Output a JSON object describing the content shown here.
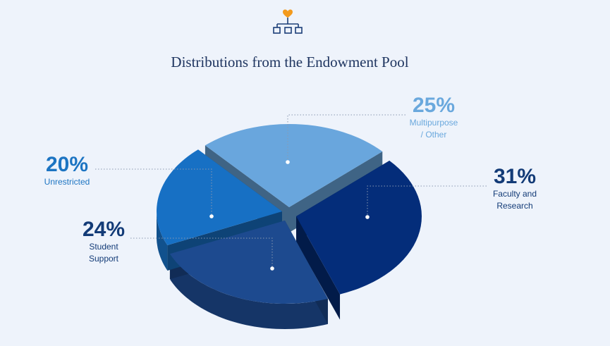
{
  "icon": "org-chart-heart-icon",
  "chart_data": {
    "type": "pie",
    "title": "Distributions from the Endowment Pool",
    "slices": [
      {
        "key": "multipurpose",
        "value": 25,
        "percent_label": "25%",
        "label_lines": [
          "Multipurpose",
          "/ Other"
        ],
        "color": "#69a6dd"
      },
      {
        "key": "faculty",
        "value": 31,
        "percent_label": "31%",
        "label_lines": [
          "Faculty and",
          "Research"
        ],
        "color": "#042d7a"
      },
      {
        "key": "student",
        "value": 24,
        "percent_label": "24%",
        "label_lines": [
          "Student",
          "Support"
        ],
        "color": "#1d4a8f"
      },
      {
        "key": "unrestricted",
        "value": 20,
        "percent_label": "20%",
        "label_lines": [
          "Unrestricted"
        ],
        "color": "#1770c4"
      }
    ],
    "label_colors": {
      "light": "#6aa8dd",
      "dark": "#133b77",
      "mid": "#1c74c2"
    },
    "legend": "none"
  }
}
